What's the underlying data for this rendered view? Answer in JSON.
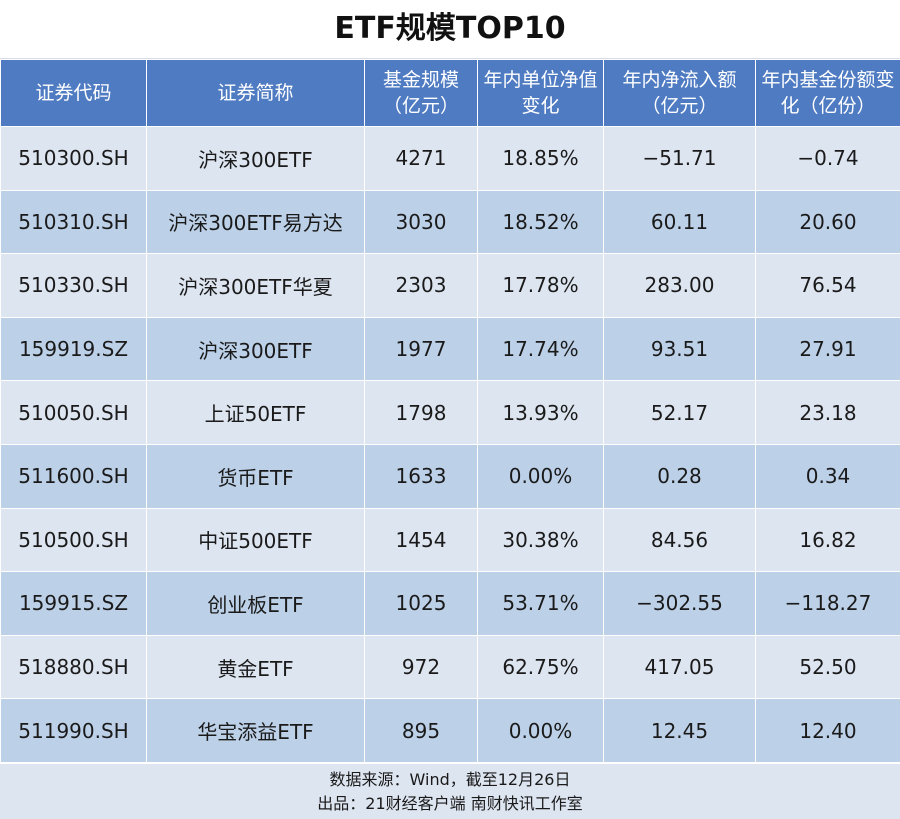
{
  "title": "ETF规模TOP10",
  "headers": [
    "证券代码",
    "证券简称",
    "基金规模（亿元）",
    "年内单位净值变化",
    "年内净流入额（亿元）",
    "年内基金份额变化（亿份）"
  ],
  "rows": [
    [
      "510300.SH",
      "沪深300ETF",
      "4271",
      "18.85%",
      "−51.71",
      "−0.74"
    ],
    [
      "510310.SH",
      "沪深300ETF易方达",
      "3030",
      "18.52%",
      "60.11",
      "20.60"
    ],
    [
      "510330.SH",
      "沪深300ETF华夏",
      "2303",
      "17.78%",
      "283.00",
      "76.54"
    ],
    [
      "159919.SZ",
      "沪深300ETF",
      "1977",
      "17.74%",
      "93.51",
      "27.91"
    ],
    [
      "510050.SH",
      "上证50ETF",
      "1798",
      "13.93%",
      "52.17",
      "23.18"
    ],
    [
      "511600.SH",
      "货币ETF",
      "1633",
      "0.00%",
      "0.28",
      "0.34"
    ],
    [
      "510500.SH",
      "中证500ETF",
      "1454",
      "30.38%",
      "84.56",
      "16.82"
    ],
    [
      "159915.SZ",
      "创业板ETF",
      "1025",
      "53.71%",
      "−302.55",
      "−118.27"
    ],
    [
      "518880.SH",
      "黄金ETF",
      "972",
      "62.75%",
      "417.05",
      "52.50"
    ],
    [
      "511990.SH",
      "华宝添益ETF",
      "895",
      "0.00%",
      "12.45",
      "12.40"
    ]
  ],
  "footer": {
    "source": "数据来源：Wind，截至12月26日",
    "producer": "出品：21财经客户端 南财快讯工作室"
  },
  "colors": {
    "header_bg": "#4f7bc2",
    "row_light": "#dde5f1",
    "row_dark": "#bcd0e8"
  }
}
